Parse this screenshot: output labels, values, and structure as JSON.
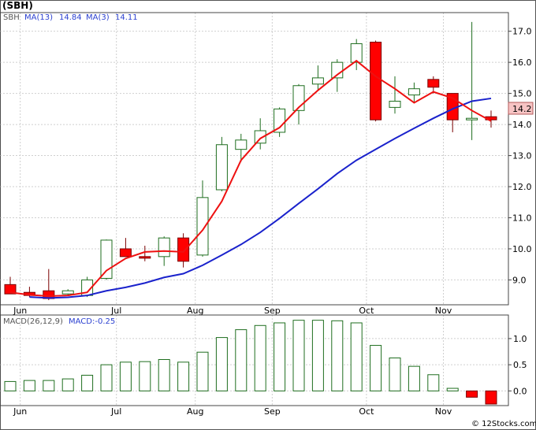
{
  "header": {
    "ticker": "(SBH)",
    "legend": [
      {
        "text": "SBH",
        "color": "#555555"
      },
      {
        "text": "MA(13)",
        "color": "#2a3fd0"
      },
      {
        "text": "14.84",
        "color": "#2a3fd0"
      },
      {
        "text": "MA(3)",
        "color": "#2a3fd0"
      },
      {
        "text": "14.11",
        "color": "#2a3fd0"
      }
    ]
  },
  "price_badge": "14.2",
  "macd_header": [
    {
      "text": "MACD(26,12,9)",
      "color": "#555555"
    },
    {
      "text": "MACD:-0.25",
      "color": "#2a3fd0"
    }
  ],
  "watermark": "© 12Stocks.com",
  "colors": {
    "up_fill": "#ffffff",
    "up_edge": "#1f6e1f",
    "down_fill": "#ff0000",
    "down_edge": "#7a0000",
    "ma13": "#1a22cc",
    "ma3": "#ee1111",
    "macd_edge": "#1f6e1f",
    "macd_neg": "#ff0000",
    "badge_bg": "#f7c4c4"
  },
  "chart_data": [
    {
      "type": "candlestick",
      "x_ticks": [
        "Jun",
        "Jul",
        "Aug",
        "Sep",
        "Oct",
        "Nov"
      ],
      "y_ticks": [
        "9.0",
        "10.0",
        "11.0",
        "12.0",
        "13.0",
        "14.0",
        "15.0",
        "16.0",
        "17.0"
      ],
      "ylim": [
        8.2,
        17.6
      ],
      "weeks": [
        {
          "i": 0,
          "open": 8.85,
          "high": 9.1,
          "low": 8.55,
          "close": 8.55
        },
        {
          "i": 1,
          "open": 8.6,
          "high": 8.78,
          "low": 8.45,
          "close": 8.5
        },
        {
          "i": 2,
          "open": 8.65,
          "high": 9.35,
          "low": 8.35,
          "close": 8.4
        },
        {
          "i": 3,
          "open": 8.55,
          "high": 8.7,
          "low": 8.5,
          "close": 8.65
        },
        {
          "i": 4,
          "open": 8.5,
          "high": 9.1,
          "low": 8.45,
          "close": 9.0
        },
        {
          "i": 5,
          "open": 9.05,
          "high": 10.3,
          "low": 9.0,
          "close": 10.28
        },
        {
          "i": 6,
          "open": 10.0,
          "high": 10.35,
          "low": 9.75,
          "close": 9.75
        },
        {
          "i": 7,
          "open": 9.75,
          "high": 10.1,
          "low": 9.6,
          "close": 9.7
        },
        {
          "i": 8,
          "open": 9.75,
          "high": 10.4,
          "low": 9.45,
          "close": 10.35
        },
        {
          "i": 9,
          "open": 10.35,
          "high": 10.5,
          "low": 9.4,
          "close": 9.6
        },
        {
          "i": 10,
          "open": 9.8,
          "high": 12.2,
          "low": 9.75,
          "close": 11.65
        },
        {
          "i": 11,
          "open": 11.9,
          "high": 13.6,
          "low": 11.85,
          "close": 13.35
        },
        {
          "i": 12,
          "open": 13.2,
          "high": 13.7,
          "low": 12.8,
          "close": 13.5
        },
        {
          "i": 13,
          "open": 13.4,
          "high": 14.2,
          "low": 13.2,
          "close": 13.8
        },
        {
          "i": 14,
          "open": 13.75,
          "high": 14.55,
          "low": 13.6,
          "close": 14.5
        },
        {
          "i": 15,
          "open": 14.45,
          "high": 15.3,
          "low": 14.0,
          "close": 15.25
        },
        {
          "i": 16,
          "open": 15.3,
          "high": 15.9,
          "low": 15.1,
          "close": 15.5
        },
        {
          "i": 17,
          "open": 15.5,
          "high": 16.1,
          "low": 15.05,
          "close": 16.0
        },
        {
          "i": 18,
          "open": 16.0,
          "high": 16.75,
          "low": 15.75,
          "close": 16.6
        },
        {
          "i": 19,
          "open": 16.65,
          "high": 16.7,
          "low": 14.1,
          "close": 14.15
        },
        {
          "i": 20,
          "open": 14.55,
          "high": 15.55,
          "low": 14.35,
          "close": 14.75
        },
        {
          "i": 21,
          "open": 14.95,
          "high": 15.35,
          "low": 14.7,
          "close": 15.15
        },
        {
          "i": 22,
          "open": 15.45,
          "high": 15.55,
          "low": 15.0,
          "close": 15.2
        },
        {
          "i": 23,
          "open": 15.0,
          "high": 15.0,
          "low": 13.75,
          "close": 14.15
        },
        {
          "i": 24,
          "open": 14.15,
          "high": 17.3,
          "low": 13.5,
          "close": 14.2
        },
        {
          "i": 25,
          "open": 14.25,
          "high": 14.45,
          "low": 13.9,
          "close": 14.15
        }
      ],
      "ma13": [
        [
          1,
          8.45
        ],
        [
          2,
          8.42
        ],
        [
          3,
          8.44
        ],
        [
          4,
          8.5
        ],
        [
          5,
          8.65
        ],
        [
          6,
          8.76
        ],
        [
          7,
          8.9
        ],
        [
          8,
          9.08
        ],
        [
          9,
          9.2
        ],
        [
          10,
          9.47
        ],
        [
          11,
          9.8
        ],
        [
          12,
          10.14
        ],
        [
          13,
          10.53
        ],
        [
          14,
          10.98
        ],
        [
          15,
          11.46
        ],
        [
          16,
          11.93
        ],
        [
          17,
          12.42
        ],
        [
          18,
          12.85
        ],
        [
          19,
          13.2
        ],
        [
          20,
          13.55
        ],
        [
          21,
          13.88
        ],
        [
          22,
          14.2
        ],
        [
          23,
          14.5
        ],
        [
          24,
          14.75
        ],
        [
          25,
          14.84
        ]
      ],
      "ma3": [
        [
          0,
          8.6
        ],
        [
          1,
          8.52
        ],
        [
          2,
          8.48
        ],
        [
          3,
          8.5
        ],
        [
          4,
          8.6
        ],
        [
          5,
          9.3
        ],
        [
          6,
          9.69
        ],
        [
          7,
          9.9
        ],
        [
          8,
          9.93
        ],
        [
          9,
          9.9
        ],
        [
          10,
          10.6
        ],
        [
          11,
          11.53
        ],
        [
          12,
          12.85
        ],
        [
          13,
          13.55
        ],
        [
          14,
          13.9
        ],
        [
          15,
          14.55
        ],
        [
          16,
          15.1
        ],
        [
          17,
          15.6
        ],
        [
          18,
          16.05
        ],
        [
          19,
          15.55
        ],
        [
          20,
          15.15
        ],
        [
          21,
          14.7
        ],
        [
          22,
          15.05
        ],
        [
          23,
          14.85
        ],
        [
          24,
          14.45
        ],
        [
          25,
          14.11
        ]
      ]
    },
    {
      "type": "bar",
      "title": "MACD(26,12,9)",
      "y_ticks": [
        "0.0",
        "0.5",
        "1.0"
      ],
      "ylim": [
        -0.28,
        1.45
      ],
      "values": [
        0.18,
        0.2,
        0.2,
        0.23,
        0.3,
        0.5,
        0.55,
        0.56,
        0.6,
        0.55,
        0.74,
        1.02,
        1.17,
        1.25,
        1.3,
        1.35,
        1.35,
        1.34,
        1.3,
        0.87,
        0.63,
        0.47,
        0.31,
        0.05,
        -0.12,
        -0.25
      ]
    }
  ]
}
